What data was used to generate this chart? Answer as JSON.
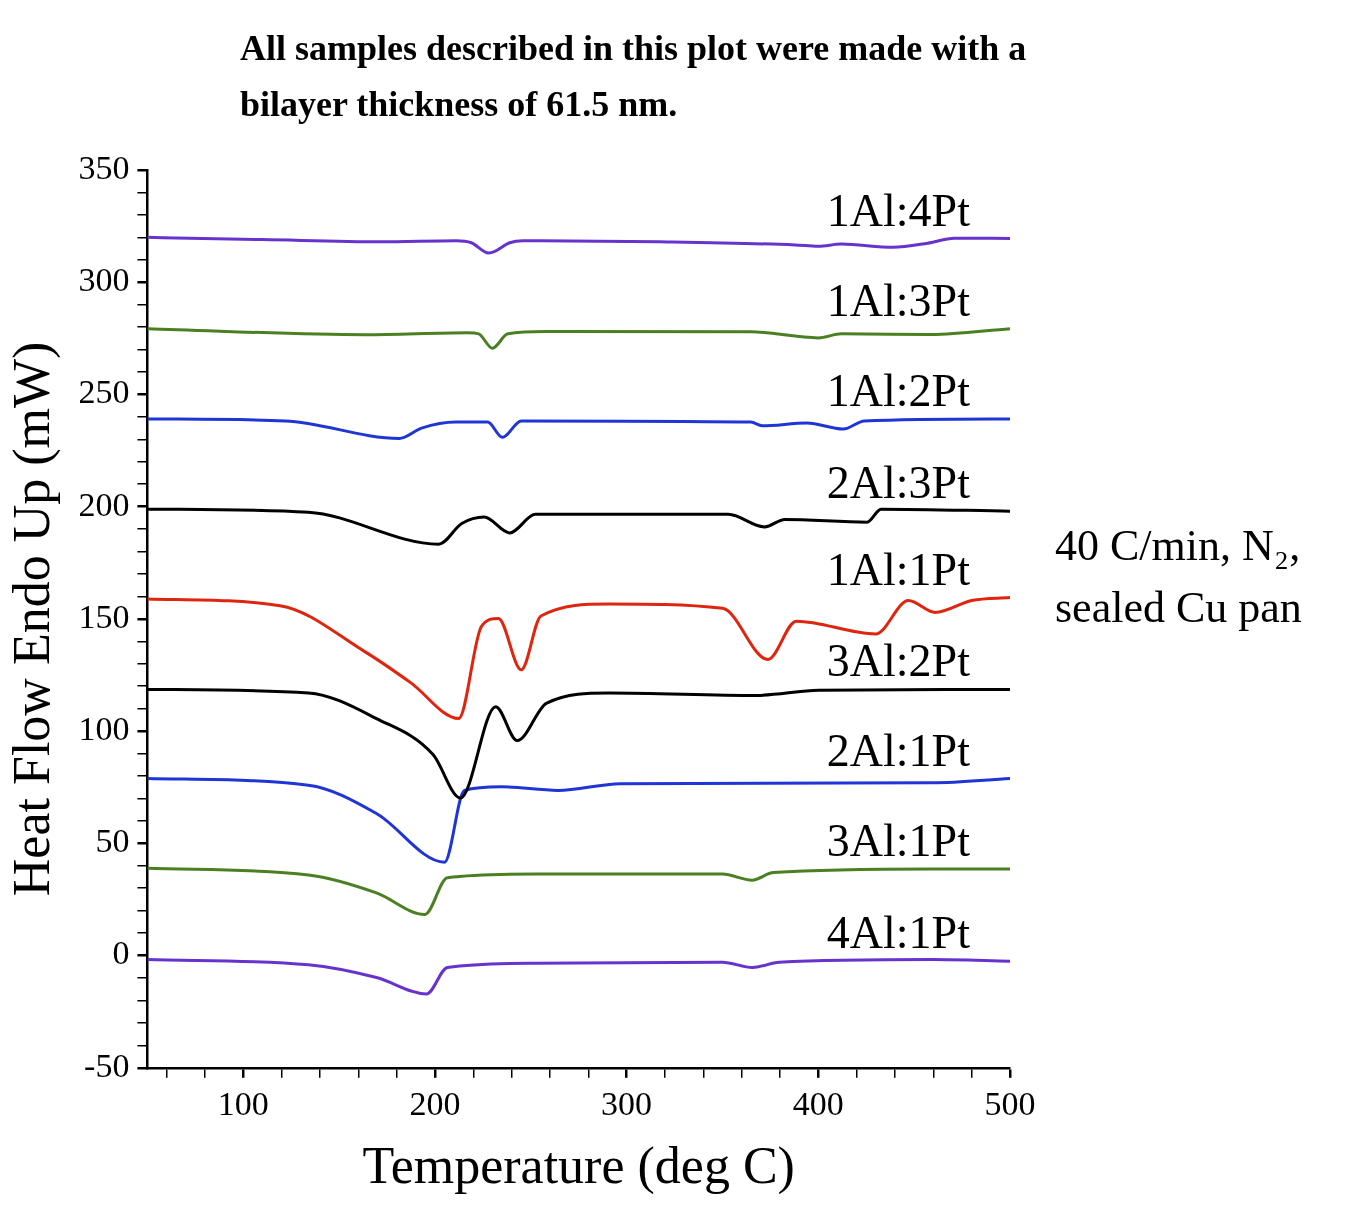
{
  "chart_data": {
    "type": "line",
    "title": "All samples described in this plot were made with a bilayer thickness of 61.5 nm.",
    "xlabel": "Temperature (deg C)",
    "ylabel": "Heat Flow Endo Up (mW)",
    "annotations": [
      "40 C/min, N₂, sealed Cu pan"
    ],
    "xlim": [
      50,
      500
    ],
    "ylim": [
      -50,
      350
    ],
    "xticks": [
      {
        "value": 60,
        "label": null
      },
      {
        "value": 80,
        "label": null
      },
      100,
      {
        "value": 120,
        "label": null
      },
      {
        "value": 140,
        "label": null
      },
      {
        "value": 160,
        "label": null
      },
      {
        "value": 180,
        "label": null
      },
      200,
      {
        "value": 220,
        "label": null
      },
      {
        "value": 240,
        "label": null
      },
      {
        "value": 260,
        "label": null
      },
      {
        "value": 280,
        "label": null
      },
      300,
      {
        "value": 320,
        "label": null
      },
      {
        "value": 340,
        "label": null
      },
      {
        "value": 360,
        "label": null
      },
      {
        "value": 380,
        "label": null
      },
      400,
      {
        "value": 420,
        "label": null
      },
      {
        "value": 440,
        "label": null
      },
      {
        "value": 460,
        "label": null
      },
      {
        "value": 480,
        "label": null
      },
      500
    ],
    "yticks": [
      -50,
      {
        "value": -40,
        "label": null
      },
      {
        "value": -30,
        "label": null
      },
      {
        "value": -20,
        "label": null
      },
      {
        "value": -10,
        "label": null
      },
      0,
      {
        "value": 10,
        "label": null
      },
      {
        "value": 20,
        "label": null
      },
      {
        "value": 30,
        "label": null
      },
      {
        "value": 40,
        "label": null
      },
      50,
      {
        "value": 60,
        "label": null
      },
      {
        "value": 70,
        "label": null
      },
      {
        "value": 80,
        "label": null
      },
      {
        "value": 90,
        "label": null
      },
      100,
      {
        "value": 110,
        "label": null
      },
      {
        "value": 120,
        "label": null
      },
      {
        "value": 130,
        "label": null
      },
      {
        "value": 140,
        "label": null
      },
      150,
      {
        "value": 160,
        "label": null
      },
      {
        "value": 170,
        "label": null
      },
      {
        "value": 180,
        "label": null
      },
      {
        "value": 190,
        "label": null
      },
      200,
      {
        "value": 210,
        "label": null
      },
      {
        "value": 220,
        "label": null
      },
      {
        "value": 230,
        "label": null
      },
      {
        "value": 240,
        "label": null
      },
      250,
      {
        "value": 260,
        "label": null
      },
      {
        "value": 270,
        "label": null
      },
      {
        "value": 280,
        "label": null
      },
      {
        "value": 290,
        "label": null
      },
      300,
      {
        "value": 310,
        "label": null
      },
      {
        "value": 320,
        "label": null
      },
      {
        "value": 330,
        "label": null
      },
      {
        "value": 340,
        "label": null
      },
      350
    ],
    "marker": "none",
    "line_style": "solid",
    "series": [
      {
        "name": "1Al:4Pt",
        "color": "#6633cc",
        "x": [
          50,
          110,
          172,
          211,
          219,
          228,
          231,
          239,
          246,
          317,
          388,
          400,
          412,
          439,
          457,
          471,
          500
        ],
        "values": [
          320,
          319,
          318,
          318.5,
          317.6,
          313,
          313.6,
          317.6,
          318.5,
          318,
          316.6,
          316,
          317,
          315.6,
          317.4,
          319.6,
          319.5
        ]
      },
      {
        "name": "1Al:3Pt",
        "color": "#4a7f22",
        "x": [
          50,
          163.6,
          216.9,
          222.8,
          230,
          238,
          258,
          364.8,
          400,
          412,
          459,
          500
        ],
        "values": [
          279.3,
          276.6,
          277.5,
          277,
          270.6,
          277,
          278,
          277.9,
          275.2,
          277,
          276.7,
          279.3
        ]
      },
      {
        "name": "1Al:2Pt",
        "color": "#1f35d6",
        "x": [
          50,
          122,
          181.4,
          193,
          211,
          227.5,
          235.2,
          245,
          364.8,
          370.7,
          394,
          413,
          424,
          500
        ],
        "values": [
          239.1,
          238.2,
          230.4,
          235,
          237.7,
          237.7,
          230.9,
          238.2,
          237.7,
          236,
          237.3,
          234.6,
          238.2,
          239.1
        ]
      },
      {
        "name": "2Al:3Pt",
        "color": "#000000",
        "x": [
          50,
          134,
          202,
          214,
          225.7,
          239,
          252.4,
          353,
          372,
          382.5,
          425.4,
          432.8,
          500
        ],
        "values": [
          198.9,
          197.5,
          183.3,
          192.5,
          195.4,
          188.3,
          196.6,
          196.6,
          191,
          194.3,
          193.1,
          198.9,
          198
        ]
      },
      {
        "name": "1Al:1Pt",
        "color": "#e0250f",
        "x": [
          50,
          119.2,
          163.6,
          187.3,
          212.4,
          224.3,
          233.1,
          245,
          255.3,
          290.8,
          350,
          373.7,
          388.5,
          429.9,
          447,
          461,
          480,
          500
        ],
        "values": [
          158.9,
          155.9,
          135.3,
          121.6,
          105.6,
          146.7,
          150.2,
          127.3,
          151.3,
          156.6,
          154.7,
          131.9,
          149,
          143.3,
          158.2,
          152.9,
          158.2,
          159.5
        ]
      },
      {
        "name": "3Al:2Pt",
        "color": "#000000",
        "x": [
          50,
          134,
          169.5,
          199,
          213.3,
          231.7,
          242.9,
          258.3,
          290.8,
          367.8,
          400.3,
          500
        ],
        "values": [
          118.6,
          117,
          105.6,
          89.6,
          70.2,
          110.9,
          95.8,
          112.5,
          117,
          115.9,
          118.2,
          118.6
        ]
      },
      {
        "name": "2Al:1Pt",
        "color": "#1f35d6",
        "x": [
          50,
          134,
          169.5,
          205,
          215.4,
          234.6,
          264.2,
          296.7,
          459.5,
          500
        ],
        "values": [
          78.9,
          75.9,
          63.3,
          41.6,
          73.6,
          75.2,
          73.6,
          76.6,
          77,
          78.9
        ]
      },
      {
        "name": "3Al:1Pt",
        "color": "#4a7f22",
        "x": [
          50,
          134,
          169.5,
          194.7,
          206.5,
          252.4,
          350,
          365.4,
          376.6,
          459.5,
          500
        ],
        "values": [
          38.9,
          35.9,
          27.9,
          18.3,
          34.7,
          36.3,
          36.3,
          33.6,
          37,
          38.6,
          38.6
        ]
      },
      {
        "name": "4Al:1Pt",
        "color": "#6633cc",
        "x": [
          50,
          134,
          169.5,
          195.6,
          206.5,
          252.4,
          350,
          365.7,
          379.6,
          459.5,
          500
        ],
        "values": [
          -1.8,
          -4.1,
          -9.8,
          -17.1,
          -5.3,
          -3.4,
          -3,
          -5.3,
          -3,
          -1.8,
          -2.5
        ]
      }
    ]
  }
}
